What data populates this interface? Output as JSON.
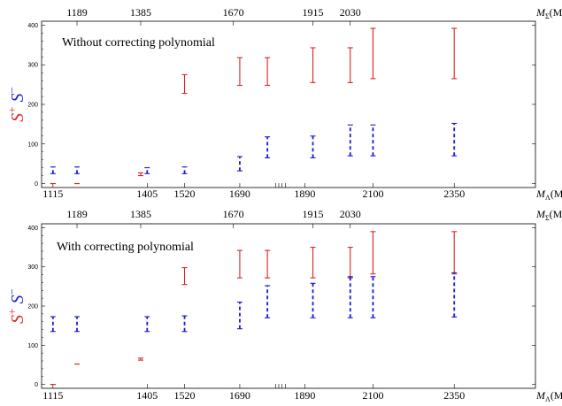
{
  "chart_data": [
    {
      "type": "errorbar",
      "title": "Without correcting polynomial",
      "ylabel_parts": [
        "S",
        "+",
        "S",
        "−"
      ],
      "colors": {
        "splus": "#dd2222",
        "sminus": "#1a1ad6"
      },
      "xlabel_bottom": {
        "symbol": "M",
        "sub": "Λ",
        "unit": "(MeV)"
      },
      "xlabel_top": {
        "symbol": "M",
        "sub": "Σ",
        "unit": "(MeV)"
      },
      "xlim": [
        1080,
        2600
      ],
      "ylim": [
        -10,
        410
      ],
      "bottom_ticks": [
        1115,
        1405,
        1520,
        1690,
        1890,
        2100,
        2350
      ],
      "bottom_minor_ticks": [
        1800,
        1810,
        1820,
        1830
      ],
      "top_ticks": [
        1189,
        1385,
        1670,
        1915,
        2030
      ],
      "y_ticks": [
        0,
        100,
        200,
        300,
        400
      ],
      "series": [
        {
          "label": "S+",
          "style": "solid",
          "points": [
            {
              "x": 1115,
              "lo": 0,
              "hi": 0
            },
            {
              "x": 1189,
              "lo": 0,
              "hi": 0
            },
            {
              "x": 1385,
              "lo": 20,
              "hi": 27
            },
            {
              "x": 1520,
              "lo": 228,
              "hi": 275
            },
            {
              "x": 1690,
              "lo": 248,
              "hi": 318
            },
            {
              "x": 1775,
              "lo": 248,
              "hi": 318
            },
            {
              "x": 1915,
              "lo": 255,
              "hi": 343
            },
            {
              "x": 2030,
              "lo": 255,
              "hi": 343
            },
            {
              "x": 2100,
              "lo": 265,
              "hi": 392
            },
            {
              "x": 2350,
              "lo": 265,
              "hi": 392
            }
          ]
        },
        {
          "label": "S−",
          "style": "dashed",
          "points": [
            {
              "x": 1115,
              "lo": 25,
              "hi": 42
            },
            {
              "x": 1189,
              "lo": 25,
              "hi": 42
            },
            {
              "x": 1405,
              "lo": 25,
              "hi": 40
            },
            {
              "x": 1520,
              "lo": 25,
              "hi": 42
            },
            {
              "x": 1690,
              "lo": 32,
              "hi": 68
            },
            {
              "x": 1775,
              "lo": 65,
              "hi": 118
            },
            {
              "x": 1915,
              "lo": 65,
              "hi": 120
            },
            {
              "x": 2030,
              "lo": 70,
              "hi": 148
            },
            {
              "x": 2100,
              "lo": 70,
              "hi": 148
            },
            {
              "x": 2350,
              "lo": 70,
              "hi": 152
            }
          ]
        }
      ]
    },
    {
      "type": "errorbar",
      "title": "With correcting polynomial",
      "ylabel_parts": [
        "S",
        "+",
        "S",
        "−"
      ],
      "colors": {
        "splus": "#dd2222",
        "sminus": "#1a1ad6"
      },
      "xlabel_bottom": {
        "symbol": "M",
        "sub": "Λ",
        "unit": "(MeV)"
      },
      "xlabel_top": {
        "symbol": "M",
        "sub": "Σ",
        "unit": "(MeV)"
      },
      "xlim": [
        1080,
        2600
      ],
      "ylim": [
        -10,
        410
      ],
      "bottom_ticks": [
        1115,
        1405,
        1520,
        1690,
        1890,
        2100,
        2350
      ],
      "bottom_minor_ticks": [
        1800,
        1810,
        1820,
        1830
      ],
      "top_ticks": [
        1189,
        1385,
        1670,
        1915,
        2030
      ],
      "y_ticks": [
        0,
        100,
        200,
        300,
        400
      ],
      "series": [
        {
          "label": "S+",
          "style": "solid",
          "points": [
            {
              "x": 1115,
              "lo": 0,
              "hi": 0
            },
            {
              "x": 1189,
              "lo": 52,
              "hi": 52
            },
            {
              "x": 1385,
              "lo": 62,
              "hi": 67
            },
            {
              "x": 1520,
              "lo": 255,
              "hi": 298
            },
            {
              "x": 1690,
              "lo": 272,
              "hi": 342
            },
            {
              "x": 1775,
              "lo": 272,
              "hi": 342
            },
            {
              "x": 1915,
              "lo": 272,
              "hi": 350
            },
            {
              "x": 2030,
              "lo": 272,
              "hi": 350
            },
            {
              "x": 2100,
              "lo": 282,
              "hi": 390
            },
            {
              "x": 2350,
              "lo": 282,
              "hi": 390
            }
          ]
        },
        {
          "label": "S−",
          "style": "dashed",
          "points": [
            {
              "x": 1115,
              "lo": 135,
              "hi": 173
            },
            {
              "x": 1189,
              "lo": 135,
              "hi": 173
            },
            {
              "x": 1405,
              "lo": 135,
              "hi": 173
            },
            {
              "x": 1520,
              "lo": 135,
              "hi": 175
            },
            {
              "x": 1690,
              "lo": 142,
              "hi": 210
            },
            {
              "x": 1775,
              "lo": 170,
              "hi": 252
            },
            {
              "x": 1915,
              "lo": 170,
              "hi": 258
            },
            {
              "x": 2030,
              "lo": 170,
              "hi": 275
            },
            {
              "x": 2100,
              "lo": 170,
              "hi": 275
            },
            {
              "x": 2350,
              "lo": 172,
              "hi": 285
            }
          ]
        }
      ]
    }
  ]
}
